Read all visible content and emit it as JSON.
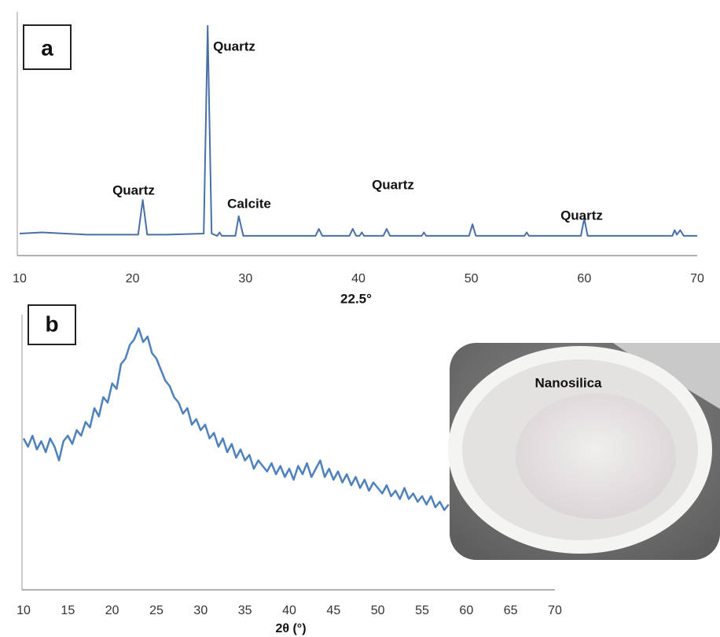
{
  "chart_data": [
    {
      "type": "line",
      "x": [
        10,
        12,
        14,
        16,
        18,
        20.5,
        20.9,
        21.3,
        23,
        26.3,
        26.65,
        27,
        27.5,
        27.7,
        27.9,
        29.1,
        29.4,
        29.8,
        36.2,
        36.5,
        36.8,
        39.2,
        39.5,
        39.8,
        40.1,
        40.3,
        40.5,
        42.2,
        42.5,
        42.8,
        45.6,
        45.8,
        46,
        49.8,
        50.1,
        50.4,
        54.7,
        54.9,
        55.1,
        59.7,
        60,
        60.3,
        67.8,
        68,
        68.2,
        68.5,
        68.8,
        70
      ],
      "values": [
        9.5,
        10,
        9.5,
        9,
        9,
        9,
        24,
        9,
        9,
        9.5,
        99,
        9.5,
        8.5,
        10,
        8.5,
        8.5,
        17,
        8.5,
        8.5,
        11.5,
        8.5,
        8.5,
        11.5,
        8.5,
        8.5,
        10,
        8.5,
        8.5,
        11.5,
        8.5,
        8.5,
        10,
        8.5,
        8.5,
        13.5,
        8.5,
        8.5,
        10,
        8.5,
        8.5,
        16,
        8.5,
        8.5,
        11,
        9,
        11,
        8.5,
        8.5
      ],
      "color": "#4a6fa5",
      "xlim": [
        10,
        70
      ],
      "xticks": [
        10,
        20,
        30,
        40,
        50,
        60,
        70
      ],
      "ylim": [
        0,
        100
      ],
      "annotations": [
        "a",
        "Quartz",
        "Quartz",
        "Calcite",
        "Quartz",
        "Quartz"
      ]
    },
    {
      "type": "line",
      "x": [
        10,
        10.5,
        11,
        11.5,
        12,
        12.5,
        13,
        13.5,
        14,
        14.5,
        15,
        15.5,
        16,
        16.5,
        17,
        17.5,
        18,
        18.5,
        19,
        19.5,
        20,
        20.5,
        21,
        21.5,
        22,
        22.5,
        23,
        23.5,
        24,
        24.5,
        25,
        25.5,
        26,
        26.5,
        27,
        27.5,
        28,
        28.5,
        29,
        29.5,
        30,
        30.5,
        31,
        31.5,
        32,
        32.5,
        33,
        33.5,
        34,
        34.5,
        35,
        35.5,
        36,
        36.5,
        37,
        37.5,
        38,
        38.5,
        39,
        39.5,
        40,
        40.5,
        41,
        41.5,
        42,
        42.5,
        43,
        43.5,
        44,
        44.5,
        45,
        45.5,
        46,
        46.5,
        47,
        47.5,
        48,
        48.5,
        49,
        49.5,
        50,
        50.5,
        51,
        51.5,
        52,
        52.5,
        53,
        53.5,
        54,
        54.5,
        55,
        55.5,
        56,
        56.5,
        57,
        57.5,
        58
      ],
      "values": [
        55,
        52,
        56,
        51,
        54,
        50,
        55,
        52,
        47,
        54,
        56,
        53,
        58,
        56,
        61,
        59,
        66,
        63,
        70,
        68,
        75,
        73,
        82,
        84,
        89,
        91,
        95,
        90,
        92,
        86,
        84,
        80,
        76,
        74,
        70,
        68,
        64,
        66,
        60,
        62,
        58,
        60,
        55,
        57,
        52,
        55,
        50,
        53,
        48,
        51,
        47,
        49,
        44,
        47,
        45,
        43,
        46,
        42,
        45,
        41,
        44,
        40,
        45,
        42,
        46,
        41,
        44,
        47,
        41,
        44,
        40,
        43,
        39,
        42,
        38,
        41,
        37,
        40,
        36,
        39,
        37,
        35,
        38,
        34,
        36,
        33,
        37,
        33,
        35,
        32,
        34,
        31,
        34,
        30,
        32,
        29,
        31
      ],
      "color": "#4f81bd",
      "xlim": [
        10,
        70
      ],
      "xticks": [
        10,
        15,
        20,
        25,
        30,
        35,
        40,
        45,
        50,
        55,
        60,
        65,
        70
      ],
      "ylim": [
        0,
        100
      ],
      "xlabel": "2θ (°)",
      "annotations": [
        "b",
        "22.5°"
      ],
      "inset_label": "Nanosilica"
    }
  ]
}
